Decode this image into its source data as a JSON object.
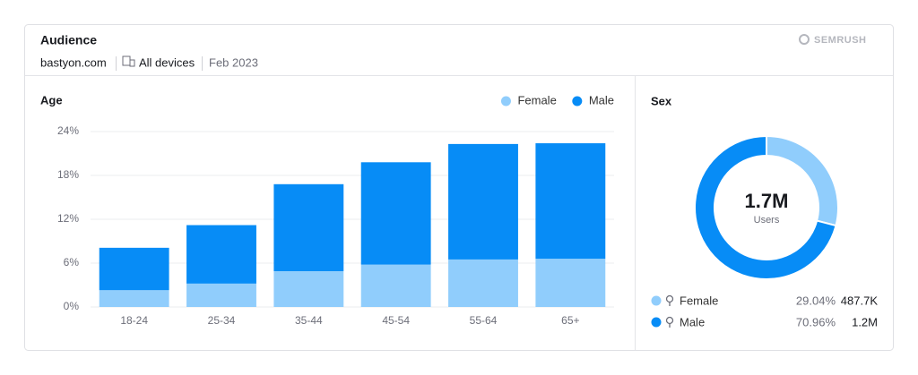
{
  "header": {
    "title": "Audience",
    "domain": "bastyon.com",
    "device": "All devices",
    "date": "Feb 2023",
    "brand": "SEMRUSH"
  },
  "chart_data": [
    {
      "type": "stacked-bar",
      "title": "Age",
      "categories": [
        "18-24",
        "25-34",
        "35-44",
        "45-54",
        "55-64",
        "65+"
      ],
      "series": [
        {
          "name": "Female",
          "color": "#90cdfc",
          "values": [
            2.3,
            3.2,
            4.9,
            5.8,
            6.5,
            6.6
          ]
        },
        {
          "name": "Male",
          "color": "#078cf6",
          "values": [
            5.8,
            8.0,
            11.9,
            14.0,
            15.8,
            15.8
          ]
        }
      ],
      "ylim": [
        0,
        24
      ],
      "yticks": [
        {
          "value": 0,
          "label": "0%"
        },
        {
          "value": 6,
          "label": "6%"
        },
        {
          "value": 12,
          "label": "12%"
        },
        {
          "value": 18,
          "label": "18%"
        },
        {
          "value": 24,
          "label": "24%"
        }
      ],
      "grid": true,
      "legend": "top-right"
    },
    {
      "type": "donut",
      "title": "Sex",
      "center_label": "1.7M",
      "center_sublabel": "Users",
      "categories": [
        "Female",
        "Male"
      ],
      "colors": [
        "#90cdfc",
        "#078cf6"
      ],
      "values": [
        29.04,
        70.96
      ],
      "value_labels": [
        "29.04%",
        "70.96%"
      ],
      "counts": [
        "487.7K",
        "1.2M"
      ]
    }
  ]
}
